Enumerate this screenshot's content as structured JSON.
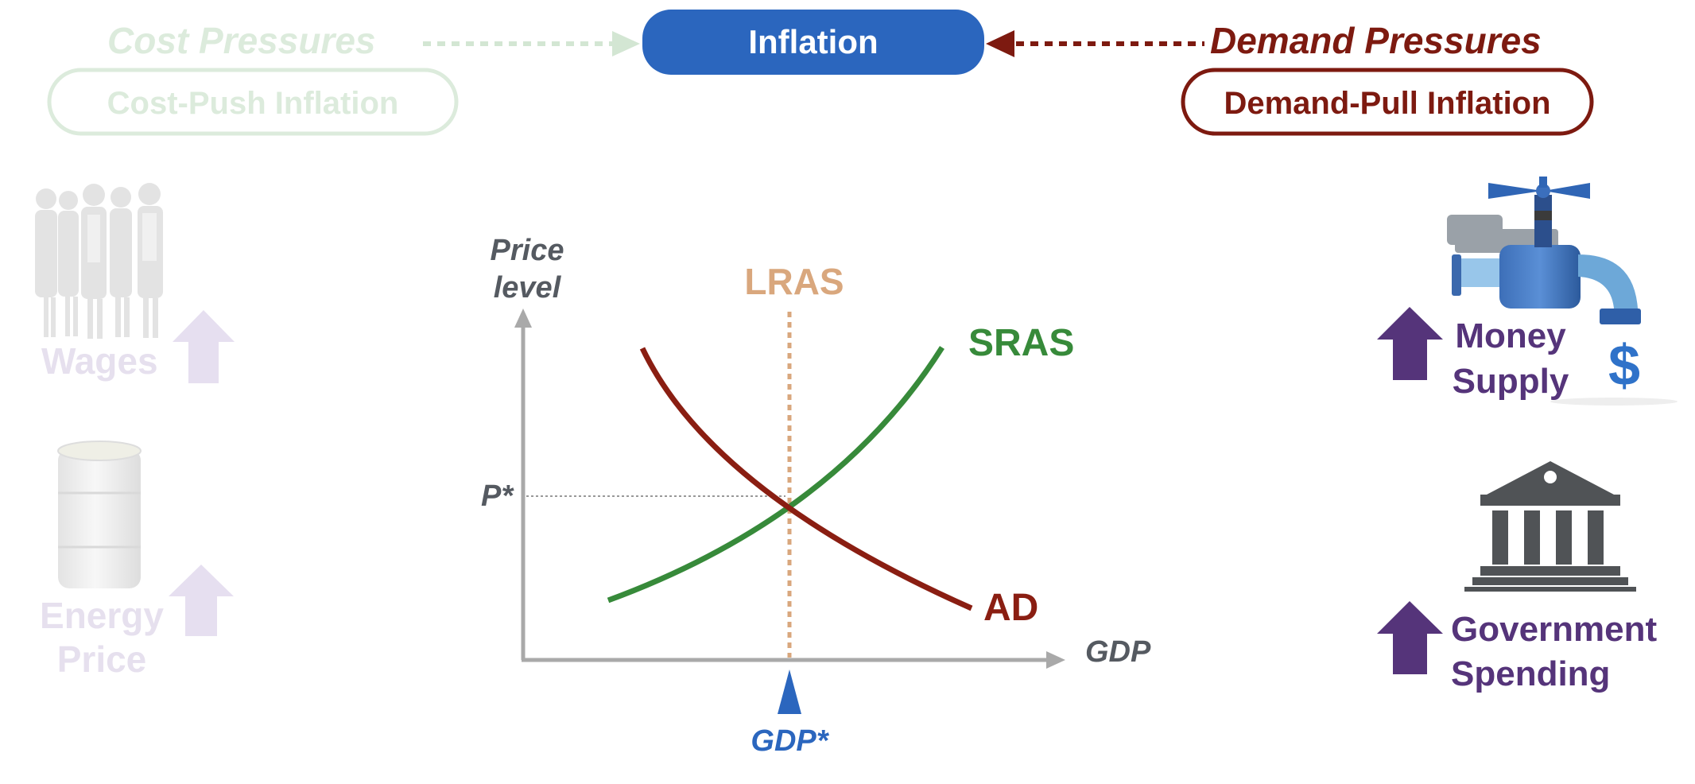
{
  "header": {
    "cost_pressures": "Cost Pressures",
    "cost_push": "Cost-Push Inflation",
    "inflation": "Inflation",
    "demand_pressures": "Demand Pressures",
    "demand_pull": "Demand-Pull Inflation"
  },
  "left": {
    "wages": "Wages",
    "energy_line1": "Energy",
    "energy_line2": "Price"
  },
  "right": {
    "money_line1": "Money",
    "money_line2": "Supply",
    "dollar": "$",
    "gov_line1": "Government",
    "gov_line2": "Spending"
  },
  "chart": {
    "ylabel_line1": "Price",
    "ylabel_line2": "level",
    "xlabel": "GDP",
    "p_star": "P*",
    "gdp_star": "GDP*",
    "lras": "LRAS",
    "sras": "SRAS",
    "ad": "AD"
  },
  "colors": {
    "inflation_blue": "#2b66be",
    "demand_red": "#7d1a10",
    "cost_faded": "#dcebdc",
    "sras_green": "#378a3a",
    "lras_tan": "#d9a77d",
    "ad_red": "#8a1e12",
    "purple": "#55347a",
    "axis_gray": "#a9a9a9",
    "label_gray": "#555a61"
  }
}
